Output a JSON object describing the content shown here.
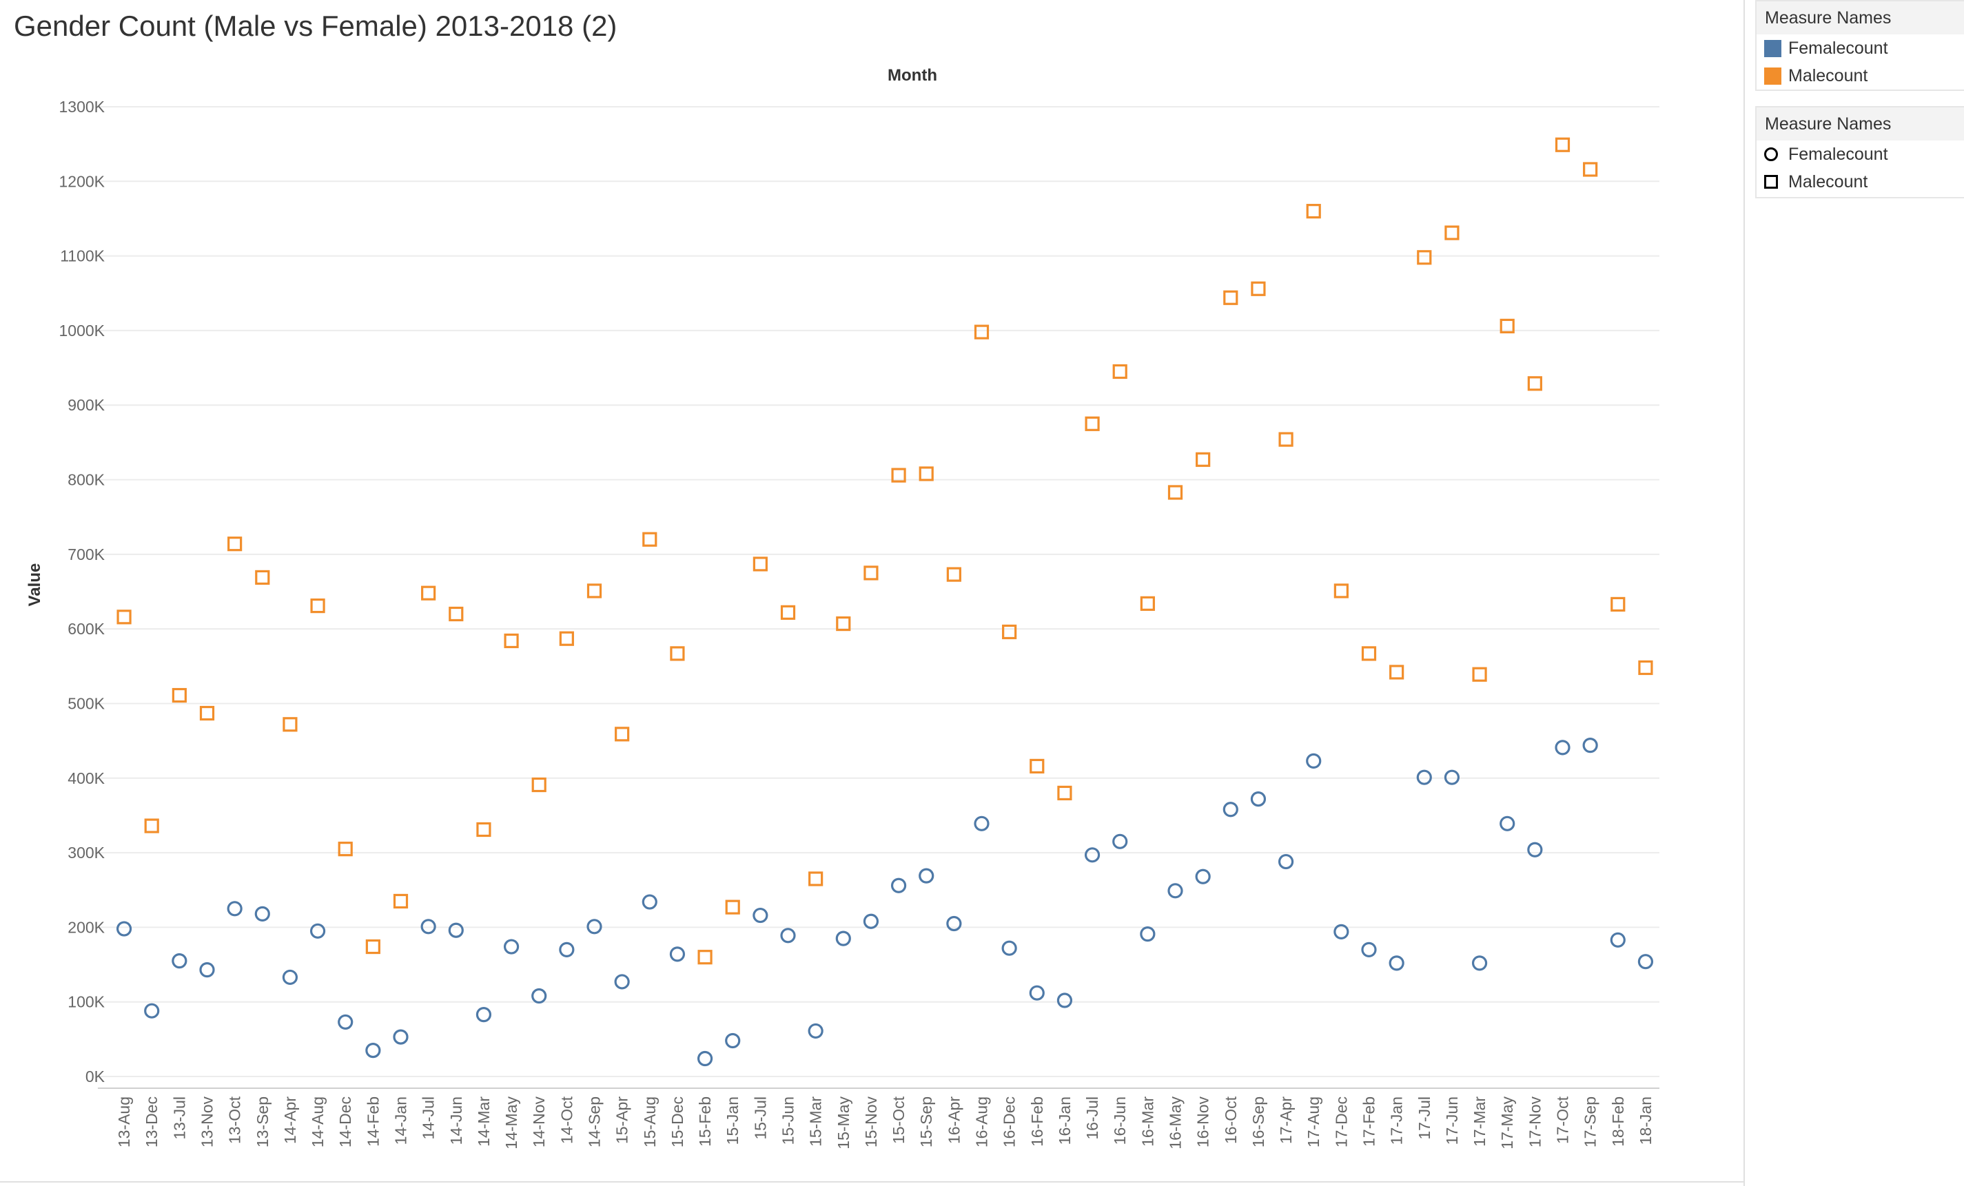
{
  "chart_data": {
    "type": "scatter",
    "title": "Gender Count (Male vs Female) 2013-2018 (2)",
    "xlabel": "Month",
    "ylabel": "Value",
    "ylim": [
      0,
      1300
    ],
    "yticks": [
      "0K",
      "100K",
      "200K",
      "300K",
      "400K",
      "500K",
      "600K",
      "700K",
      "800K",
      "900K",
      "1000K",
      "1100K",
      "1200K",
      "1300K"
    ],
    "ytick_values": [
      0,
      100,
      200,
      300,
      400,
      500,
      600,
      700,
      800,
      900,
      1000,
      1100,
      1200,
      1300
    ],
    "value_unit": "thousands",
    "categories": [
      "13-Aug",
      "13-Dec",
      "13-Jul",
      "13-Nov",
      "13-Oct",
      "13-Sep",
      "14-Apr",
      "14-Aug",
      "14-Dec",
      "14-Feb",
      "14-Jan",
      "14-Jul",
      "14-Jun",
      "14-Mar",
      "14-May",
      "14-Nov",
      "14-Oct",
      "14-Sep",
      "15-Apr",
      "15-Aug",
      "15-Dec",
      "15-Feb",
      "15-Jan",
      "15-Jul",
      "15-Jun",
      "15-Mar",
      "15-May",
      "15-Nov",
      "15-Oct",
      "15-Sep",
      "16-Apr",
      "16-Aug",
      "16-Dec",
      "16-Feb",
      "16-Jan",
      "16-Jul",
      "16-Jun",
      "16-Mar",
      "16-May",
      "16-Nov",
      "16-Oct",
      "16-Sep",
      "17-Apr",
      "17-Aug",
      "17-Dec",
      "17-Feb",
      "17-Jan",
      "17-Jul",
      "17-Jun",
      "17-Mar",
      "17-May",
      "17-Nov",
      "17-Oct",
      "17-Sep",
      "18-Feb",
      "18-Jan"
    ],
    "series": [
      {
        "name": "Femalecount",
        "color": "#4e79a7",
        "shape": "circle",
        "values": [
          198,
          88,
          155,
          143,
          225,
          218,
          133,
          195,
          73,
          35,
          53,
          201,
          196,
          83,
          174,
          108,
          170,
          201,
          127,
          234,
          164,
          24,
          48,
          216,
          189,
          61,
          185,
          208,
          256,
          269,
          205,
          339,
          172,
          112,
          102,
          297,
          315,
          191,
          249,
          268,
          358,
          372,
          288,
          423,
          194,
          170,
          152,
          401,
          401,
          152,
          339,
          304,
          441,
          444,
          183,
          154
        ]
      },
      {
        "name": "Malecount",
        "color": "#f28e2b",
        "shape": "square",
        "values": [
          616,
          336,
          511,
          487,
          714,
          669,
          472,
          631,
          305,
          174,
          235,
          648,
          620,
          331,
          584,
          391,
          587,
          651,
          459,
          720,
          567,
          160,
          227,
          687,
          622,
          265,
          607,
          675,
          806,
          808,
          673,
          998,
          596,
          416,
          380,
          875,
          945,
          634,
          783,
          827,
          1044,
          1056,
          854,
          1160,
          651,
          567,
          542,
          1098,
          1131,
          539,
          1006,
          929,
          1249,
          1216,
          633,
          548
        ]
      }
    ],
    "legends": [
      {
        "title": "Measure Names",
        "kind": "color",
        "items": [
          "Femalecount",
          "Malecount"
        ]
      },
      {
        "title": "Measure Names",
        "kind": "shape",
        "items": [
          "Femalecount",
          "Malecount"
        ]
      }
    ]
  }
}
